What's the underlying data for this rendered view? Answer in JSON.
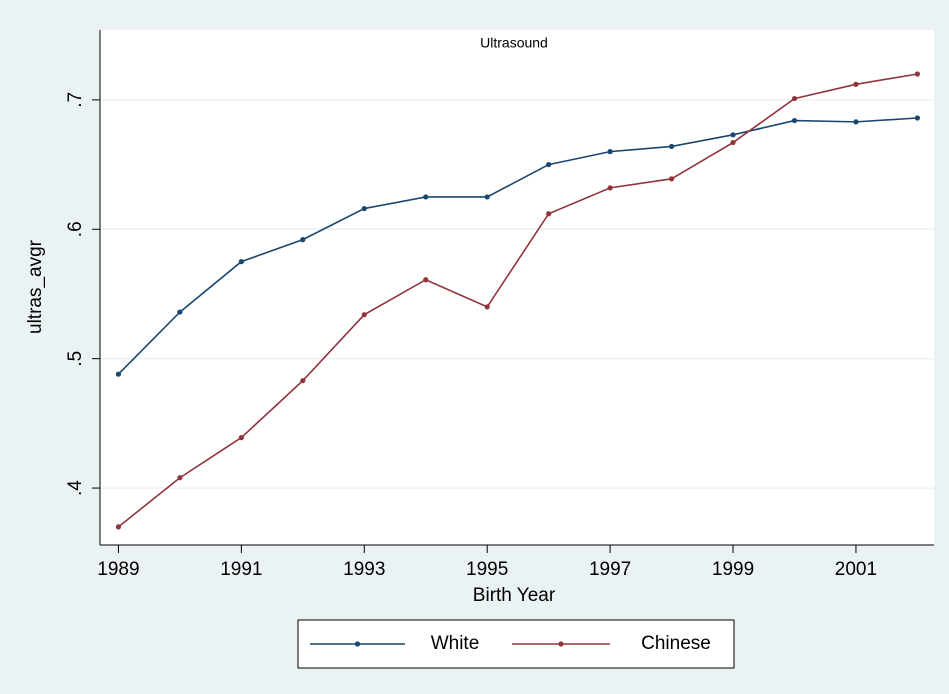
{
  "chart_data": {
    "type": "line",
    "title": "Ultrasound",
    "x_label": "Birth Year",
    "y_label": "ultras_avgr",
    "x": [
      1989,
      1990,
      1991,
      1992,
      1993,
      1994,
      1995,
      1996,
      1997,
      1998,
      1999,
      2000,
      2001,
      2002
    ],
    "series": [
      {
        "name": "White",
        "color": "#1a476f",
        "values": [
          0.488,
          0.536,
          0.575,
          0.592,
          0.616,
          0.625,
          0.625,
          0.65,
          0.66,
          0.664,
          0.673,
          0.684,
          0.683,
          0.686
        ]
      },
      {
        "name": "Chinese",
        "color": "#90353b",
        "values": [
          0.37,
          0.408,
          0.439,
          0.483,
          0.534,
          0.561,
          0.54,
          0.612,
          0.632,
          0.639,
          0.667,
          0.701,
          0.712,
          0.72
        ]
      }
    ],
    "xlim": [
      1988.7,
      2002.27
    ],
    "ylim": [
      0.356,
      0.754
    ],
    "xticks": [
      1989,
      1991,
      1993,
      1995,
      1997,
      1999,
      2001
    ],
    "yticks": [
      {
        "value": 0.4,
        "label": ".4"
      },
      {
        "value": 0.5,
        "label": ".5"
      },
      {
        "value": 0.6,
        "label": ".6"
      },
      {
        "value": 0.7,
        "label": ".7"
      }
    ],
    "grid": true,
    "legend": "bottom"
  }
}
